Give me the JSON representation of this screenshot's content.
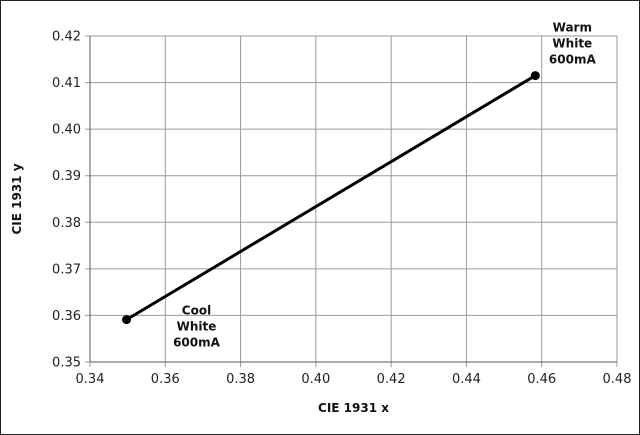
{
  "chart_data": {
    "type": "line",
    "title": "",
    "xlabel": "CIE 1931 x",
    "ylabel": "CIE 1931 y",
    "xlim": [
      0.34,
      0.48
    ],
    "ylim": [
      0.35,
      0.42
    ],
    "x_ticks": [
      "0.34",
      "0.36",
      "0.38",
      "0.40",
      "0.42",
      "0.44",
      "0.46",
      "0.48"
    ],
    "y_ticks": [
      "0.35",
      "0.36",
      "0.37",
      "0.38",
      "0.39",
      "0.40",
      "0.41",
      "0.42"
    ],
    "grid": true,
    "series": [
      {
        "x": [
          0.3497,
          0.4583
        ],
        "y": [
          0.3591,
          0.4115
        ]
      }
    ],
    "annotations": [
      {
        "x": 0.3497,
        "y": 0.3591,
        "lines": [
          "Cool",
          "White",
          "600mA"
        ]
      },
      {
        "x": 0.4583,
        "y": 0.4115,
        "lines": [
          "Warm",
          "White",
          "600mA"
        ]
      }
    ]
  }
}
